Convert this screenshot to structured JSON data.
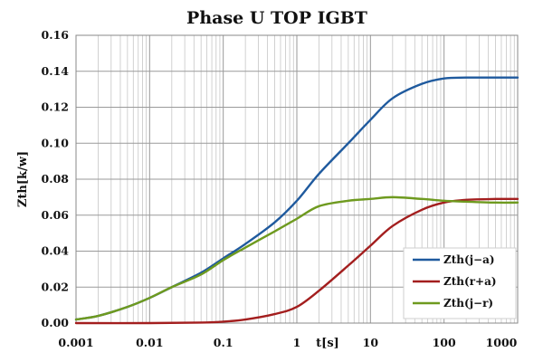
{
  "chart_data": {
    "type": "line",
    "title": "Phase U TOP IGBT",
    "xlabel": "t[s]",
    "ylabel": "Zth[k/w]",
    "x_scale": "log",
    "xlim": [
      0.001,
      1000
    ],
    "ylim": [
      0,
      0.16
    ],
    "x_ticks": [
      0.001,
      0.01,
      0.1,
      1,
      10,
      100,
      1000
    ],
    "x_tick_labels": [
      "0.001",
      "0.01",
      "0.1",
      "1",
      "10",
      "100",
      "1000"
    ],
    "y_ticks": [
      0,
      0.02,
      0.04,
      0.06,
      0.08,
      0.1,
      0.12,
      0.14,
      0.16
    ],
    "y_tick_labels": [
      "0.00",
      "0.02",
      "0.04",
      "0.06",
      "0.08",
      "0.10",
      "0.12",
      "0.14",
      "0.16"
    ],
    "grid": true,
    "legend": "bottom-right",
    "series": [
      {
        "name": "Zth(j−a)",
        "color": "#1f5a9e",
        "x": [
          0.001,
          0.002,
          0.005,
          0.01,
          0.02,
          0.05,
          0.1,
          0.2,
          0.5,
          1,
          2,
          5,
          10,
          20,
          50,
          100,
          200,
          500,
          1000
        ],
        "y": [
          0.002,
          0.004,
          0.009,
          0.014,
          0.02,
          0.028,
          0.036,
          0.044,
          0.056,
          0.068,
          0.083,
          0.1,
          0.113,
          0.125,
          0.133,
          0.136,
          0.1365,
          0.1365,
          0.1365
        ]
      },
      {
        "name": "Zth(r+a)",
        "color": "#a31e1e",
        "x": [
          0.001,
          0.01,
          0.05,
          0.1,
          0.2,
          0.5,
          1,
          2,
          5,
          10,
          20,
          50,
          100,
          200,
          500,
          1000
        ],
        "y": [
          0,
          0,
          0.0003,
          0.0008,
          0.002,
          0.005,
          0.009,
          0.018,
          0.032,
          0.043,
          0.054,
          0.063,
          0.067,
          0.0685,
          0.069,
          0.069
        ]
      },
      {
        "name": "Zth(j−r)",
        "color": "#6e9a1f",
        "x": [
          0.001,
          0.002,
          0.005,
          0.01,
          0.02,
          0.05,
          0.1,
          0.2,
          0.5,
          1,
          2,
          5,
          10,
          20,
          50,
          100,
          200,
          500,
          1000
        ],
        "y": [
          0.002,
          0.004,
          0.009,
          0.014,
          0.02,
          0.027,
          0.035,
          0.042,
          0.051,
          0.058,
          0.065,
          0.068,
          0.069,
          0.07,
          0.069,
          0.068,
          0.0675,
          0.067,
          0.067
        ]
      }
    ]
  }
}
